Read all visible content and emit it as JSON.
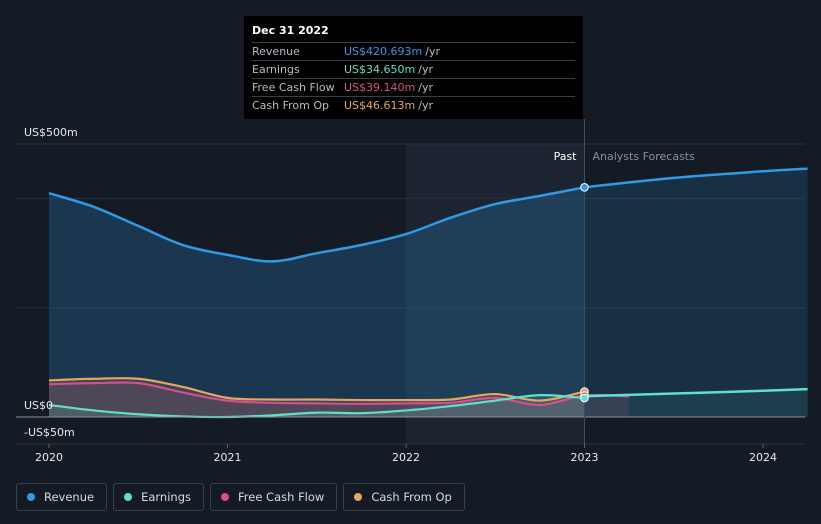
{
  "chart_data": {
    "type": "line",
    "y_axis_labels": {
      "top": "US$500m",
      "zero": "US$0",
      "bottom": "-US$50m"
    },
    "ylim": [
      -50,
      500
    ],
    "x_ticks": [
      "2020",
      "2021",
      "2022",
      "2023",
      "2024"
    ],
    "x_tick_values": [
      2020,
      2021,
      2022,
      2023,
      2024
    ],
    "xlim": [
      2019.83,
      2024.25
    ],
    "forecast_region_start": 2022,
    "past_label": "Past",
    "forecast_label": "Analysts Forecasts",
    "divider_x": 2023,
    "series": [
      {
        "name": "Revenue",
        "color": "#2f9ae6",
        "x": [
          2020.0,
          2020.25,
          2020.5,
          2020.75,
          2021.0,
          2021.25,
          2021.5,
          2021.75,
          2022.0,
          2022.25,
          2022.5,
          2022.75,
          2023.0
        ],
        "values": [
          410,
          385,
          350,
          315,
          297,
          285,
          300,
          315,
          335,
          365,
          390,
          405,
          420.693
        ],
        "forecast_x": [
          2023.0,
          2023.5,
          2024.0,
          2024.25
        ],
        "forecast_values": [
          420.693,
          438,
          450,
          455
        ]
      },
      {
        "name": "Earnings",
        "color": "#5fe0c8",
        "x": [
          2020.0,
          2020.25,
          2020.5,
          2020.75,
          2021.0,
          2021.25,
          2021.5,
          2021.75,
          2022.0,
          2022.25,
          2022.5,
          2022.75,
          2023.0
        ],
        "values": [
          22,
          12,
          5,
          1,
          0,
          3,
          8,
          7,
          12,
          20,
          30,
          40,
          34.65
        ],
        "forecast_x": [
          2023.0,
          2023.5,
          2024.0,
          2024.25
        ],
        "forecast_values": [
          38,
          43,
          48,
          51
        ]
      },
      {
        "name": "Free Cash Flow",
        "color": "#d44f8f",
        "x": [
          2020.0,
          2020.25,
          2020.5,
          2020.75,
          2021.0,
          2021.25,
          2021.5,
          2021.75,
          2022.0,
          2022.25,
          2022.5,
          2022.75,
          2023.0,
          2023.25
        ],
        "values": [
          60,
          62,
          62,
          45,
          30,
          26,
          25,
          24,
          25,
          26,
          35,
          22,
          39.14,
          38
        ]
      },
      {
        "name": "Cash From Op",
        "color": "#e8a55f",
        "x": [
          2020.0,
          2020.25,
          2020.5,
          2020.75,
          2021.0,
          2021.25,
          2021.5,
          2021.75,
          2022.0,
          2022.25,
          2022.5,
          2022.75,
          2023.0
        ],
        "values": [
          67,
          70,
          70,
          55,
          35,
          32,
          32,
          31,
          31,
          32,
          42,
          30,
          46.613
        ]
      }
    ]
  },
  "tooltip": {
    "date": "Dec 31 2022",
    "unit": "/yr",
    "rows": [
      {
        "label": "Revenue",
        "value": "US$420.693m",
        "color": "#2f9ae6"
      },
      {
        "label": "Earnings",
        "value": "US$34.650m",
        "color": "#5fe0c8"
      },
      {
        "label": "Free Cash Flow",
        "value": "US$39.140m",
        "color": "#d44f8f"
      },
      {
        "label": "Cash From Op",
        "value": "US$46.613m",
        "color": "#e8a55f"
      }
    ]
  },
  "legend": [
    {
      "label": "Revenue",
      "color": "#2f9ae6"
    },
    {
      "label": "Earnings",
      "color": "#5fe0c8"
    },
    {
      "label": "Free Cash Flow",
      "color": "#d44f8f"
    },
    {
      "label": "Cash From Op",
      "color": "#e8a55f"
    }
  ]
}
